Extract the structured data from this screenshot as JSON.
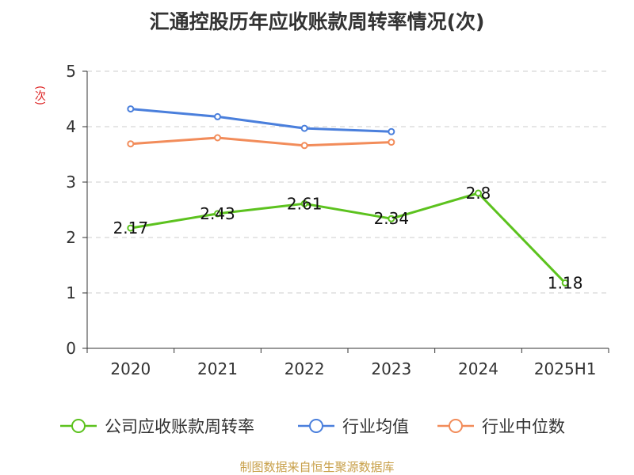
{
  "chart_data": {
    "type": "line",
    "title": "汇通控股历年应收账款周转率情况(次)",
    "ylabel": "(次)",
    "xlabel": "",
    "categories": [
      "2020",
      "2021",
      "2022",
      "2023",
      "2024",
      "2025H1"
    ],
    "ylim": [
      0,
      5
    ],
    "yticks": [
      0,
      1,
      2,
      3,
      4,
      5
    ],
    "grid": true,
    "legend_position": "bottom",
    "series": [
      {
        "name": "公司应收账款周转率",
        "color": "#5cc21e",
        "values": [
          2.17,
          2.43,
          2.61,
          2.34,
          2.8,
          1.18
        ],
        "labels": [
          "2.17",
          "2.43",
          "2.61",
          "2.34",
          "2.8",
          "1.18"
        ]
      },
      {
        "name": "行业均值",
        "color": "#4a7fdc",
        "values": [
          4.32,
          4.18,
          3.97,
          3.91,
          null,
          null
        ]
      },
      {
        "name": "行业中位数",
        "color": "#f28c5a",
        "values": [
          3.69,
          3.8,
          3.66,
          3.72,
          null,
          null
        ]
      }
    ]
  },
  "source": "制图数据来自恒生聚源数据库"
}
